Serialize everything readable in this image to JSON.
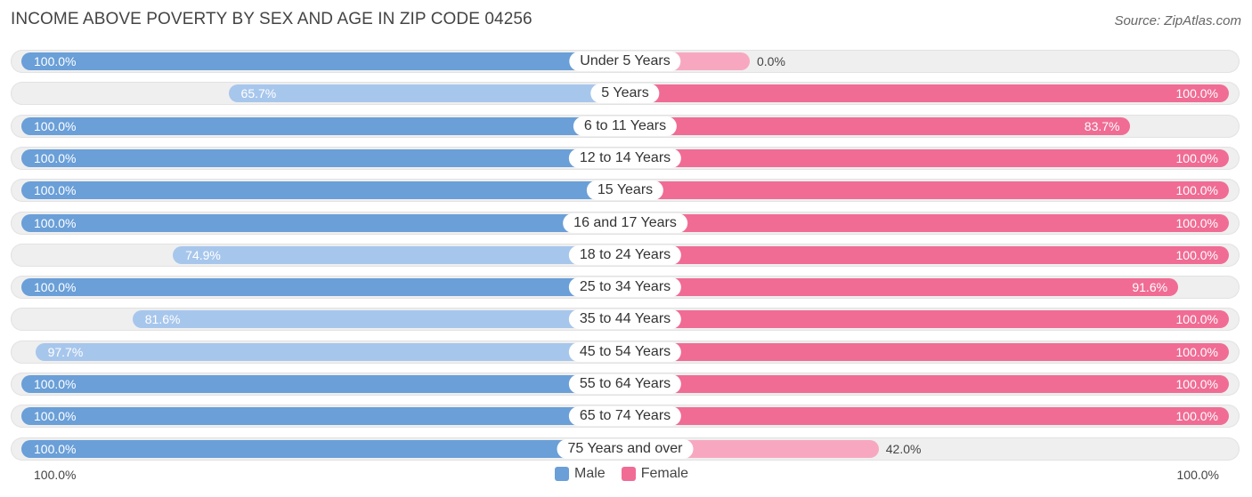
{
  "title": "INCOME ABOVE POVERTY BY SEX AND AGE IN ZIP CODE 04256",
  "source": "Source: ZipAtlas.com",
  "axis": {
    "left_label": "100.0%",
    "right_label": "100.0%"
  },
  "legend": {
    "male": "Male",
    "female": "Female"
  },
  "colors": {
    "male": "#6a9fd8",
    "male_light": "#a7c6ec",
    "female": "#f06c95",
    "female_light": "#f7a8c0",
    "track": "#efefef"
  },
  "chart_data": {
    "type": "bar",
    "orientation": "horizontal-diverging",
    "title": "INCOME ABOVE POVERTY BY SEX AND AGE IN ZIP CODE 04256",
    "categories": [
      "Under 5 Years",
      "5 Years",
      "6 to 11 Years",
      "12 to 14 Years",
      "15 Years",
      "16 and 17 Years",
      "18 to 24 Years",
      "25 to 34 Years",
      "35 to 44 Years",
      "45 to 54 Years",
      "55 to 64 Years",
      "65 to 74 Years",
      "75 Years and over"
    ],
    "series": [
      {
        "name": "Male",
        "values": [
          100.0,
          65.7,
          100.0,
          100.0,
          100.0,
          100.0,
          74.9,
          100.0,
          81.6,
          97.7,
          100.0,
          100.0,
          100.0
        ],
        "labels": [
          "100.0%",
          "65.7%",
          "100.0%",
          "100.0%",
          "100.0%",
          "100.0%",
          "74.9%",
          "100.0%",
          "81.6%",
          "97.7%",
          "100.0%",
          "100.0%",
          "100.0%"
        ]
      },
      {
        "name": "Female",
        "values": [
          0.0,
          100.0,
          83.7,
          100.0,
          100.0,
          100.0,
          100.0,
          91.6,
          100.0,
          100.0,
          100.0,
          100.0,
          42.0
        ],
        "labels": [
          "0.0%",
          "100.0%",
          "83.7%",
          "100.0%",
          "100.0%",
          "100.0%",
          "100.0%",
          "91.6%",
          "100.0%",
          "100.0%",
          "100.0%",
          "100.0%",
          "42.0%"
        ]
      }
    ],
    "xlim": [
      0,
      100
    ],
    "legend_position": "bottom-center"
  }
}
